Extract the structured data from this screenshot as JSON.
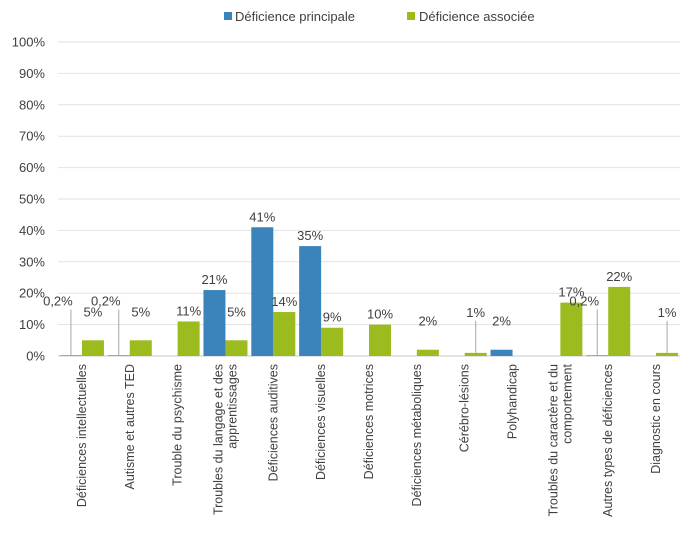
{
  "chart_data": {
    "type": "bar",
    "categories": [
      [
        "Déficiences intellectuelles"
      ],
      [
        "Autisme et autres TED"
      ],
      [
        "Trouble du psychisme"
      ],
      [
        "Troubles du langage et des",
        "apprentissages"
      ],
      [
        "Déficiences auditives"
      ],
      [
        "Déficiences visuelles"
      ],
      [
        "Déficiences motrices"
      ],
      [
        "Déficiences métaboliques"
      ],
      [
        "Cérébro-lésions"
      ],
      [
        "Polyhandicap"
      ],
      [
        "Troubles du caractère et du",
        "comportement"
      ],
      [
        "Autres types de déficiences"
      ],
      [
        "Diagnostic en cours"
      ]
    ],
    "series": [
      {
        "name": "Déficience principale",
        "color": "#3a83bb",
        "values": [
          0.2,
          0.2,
          0,
          21,
          41,
          35,
          0,
          0,
          0,
          2,
          0,
          0.2,
          0
        ],
        "labels": [
          "0,2%",
          "0,2%",
          "",
          "21%",
          "41%",
          "35%",
          "",
          "",
          "",
          "2%",
          "",
          "0,2%",
          ""
        ]
      },
      {
        "name": "Déficience associée",
        "color": "#9bbb1e",
        "values": [
          5,
          5,
          11,
          5,
          14,
          9,
          10,
          2,
          1,
          0,
          17,
          22,
          1
        ],
        "labels": [
          "5%",
          "5%",
          "11%",
          "5%",
          "14%",
          "9%",
          "10%",
          "2%",
          "1%",
          "",
          "17%",
          "22%",
          "1%"
        ]
      }
    ],
    "ylim": [
      0,
      100
    ],
    "yticks": [
      "0%",
      "10%",
      "20%",
      "30%",
      "40%",
      "50%",
      "60%",
      "70%",
      "80%",
      "90%",
      "100%"
    ],
    "grid": true,
    "legend": "top-center"
  }
}
